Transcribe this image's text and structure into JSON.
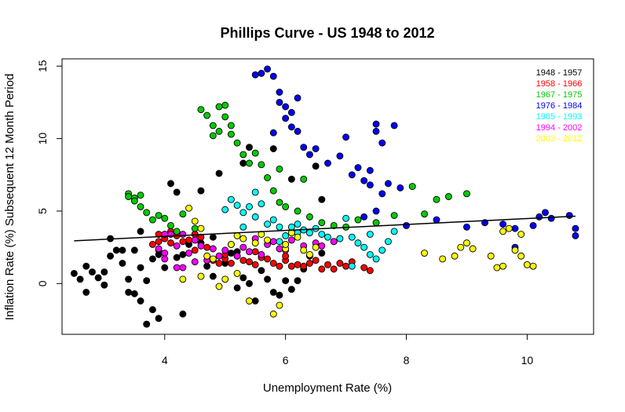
{
  "chart_data": {
    "type": "scatter",
    "title": "Phillips Curve - US 1948 to 2012",
    "xlabel": "Unemployment Rate (%)",
    "ylabel": "Inflation Rate (%) Subsequent 12 Month Period",
    "xlim": [
      2.3,
      11.1
    ],
    "ylim": [
      -3.5,
      15.5
    ],
    "xticks": [
      4,
      6,
      8,
      10
    ],
    "yticks": [
      0,
      5,
      10,
      15
    ],
    "grid": false,
    "legend_position": "top-right",
    "trend_line": {
      "x": [
        2.5,
        10.8
      ],
      "y": [
        2.95,
        4.65
      ]
    },
    "series": [
      {
        "name": "1948 - 1957",
        "color": "#000000",
        "points": [
          [
            2.5,
            0.7
          ],
          [
            2.6,
            0.3
          ],
          [
            2.7,
            1.2
          ],
          [
            2.8,
            0.8
          ],
          [
            2.9,
            0.4
          ],
          [
            3.0,
            0.8
          ],
          [
            3.1,
            1.9
          ],
          [
            3.1,
            3.1
          ],
          [
            3.2,
            2.3
          ],
          [
            3.3,
            1.4
          ],
          [
            3.4,
            0.3
          ],
          [
            3.5,
            2.3
          ],
          [
            3.5,
            -0.7
          ],
          [
            3.6,
            1.1
          ],
          [
            3.7,
            0.2
          ],
          [
            3.8,
            1.7
          ],
          [
            3.9,
            2.3
          ],
          [
            3.9,
            2.0
          ],
          [
            4.0,
            1.1
          ],
          [
            4.0,
            3.4
          ],
          [
            4.1,
            6.9
          ],
          [
            4.2,
            6.3
          ],
          [
            4.3,
            2.0
          ],
          [
            4.4,
            2.7
          ],
          [
            4.5,
            3.4
          ],
          [
            4.6,
            2.8
          ],
          [
            4.7,
            1.2
          ],
          [
            4.8,
            3.2
          ],
          [
            5.0,
            1.4
          ],
          [
            5.1,
            2.1
          ],
          [
            5.2,
            2.2
          ],
          [
            5.3,
            0.4
          ],
          [
            5.4,
            0.0
          ],
          [
            5.5,
            -1.2
          ],
          [
            5.6,
            0.9
          ],
          [
            5.7,
            0.3
          ],
          [
            5.8,
            -0.6
          ],
          [
            5.9,
            -0.8
          ],
          [
            6.0,
            0.2
          ],
          [
            6.1,
            -0.4
          ],
          [
            6.2,
            0.2
          ],
          [
            6.3,
            1.0
          ],
          [
            6.4,
            1.9
          ],
          [
            6.6,
            2.1
          ],
          [
            3.6,
            -1.2
          ],
          [
            3.4,
            -0.6
          ],
          [
            3.7,
            -2.8
          ],
          [
            3.9,
            -2.4
          ],
          [
            3.8,
            -1.8
          ],
          [
            4.3,
            -2.1
          ],
          [
            4.9,
            7.6
          ],
          [
            5.3,
            8.3
          ],
          [
            5.4,
            9.4
          ],
          [
            5.8,
            9.3
          ],
          [
            6.5,
            8.1
          ],
          [
            6.6,
            5.8
          ],
          [
            6.1,
            7.2
          ],
          [
            4.6,
            6.4
          ],
          [
            4.8,
            0.5
          ],
          [
            5.2,
            -0.3
          ],
          [
            3.3,
            2.3
          ],
          [
            3.6,
            3.6
          ],
          [
            4.2,
            1.8
          ],
          [
            2.7,
            -0.6
          ],
          [
            3.0,
            -0.1
          ]
        ]
      },
      {
        "name": "1958 - 1966",
        "color": "#ff0000",
        "points": [
          [
            3.8,
            2.7
          ],
          [
            3.9,
            2.9
          ],
          [
            4.0,
            3.1
          ],
          [
            4.1,
            2.8
          ],
          [
            4.2,
            3.3
          ],
          [
            4.3,
            2.9
          ],
          [
            4.4,
            3.0
          ],
          [
            4.5,
            3.4
          ],
          [
            4.6,
            3.2
          ],
          [
            4.7,
            2.5
          ],
          [
            4.8,
            1.6
          ],
          [
            4.9,
            1.4
          ],
          [
            5.0,
            1.7
          ],
          [
            5.1,
            1.4
          ],
          [
            5.2,
            1.9
          ],
          [
            5.3,
            1.6
          ],
          [
            5.4,
            1.5
          ],
          [
            5.5,
            1.3
          ],
          [
            5.6,
            1.8
          ],
          [
            5.7,
            1.7
          ],
          [
            5.8,
            1.4
          ],
          [
            5.9,
            1.2
          ],
          [
            6.0,
            1.6
          ],
          [
            6.1,
            1.2
          ],
          [
            6.2,
            1.3
          ],
          [
            6.3,
            1.2
          ],
          [
            6.4,
            1.4
          ],
          [
            6.5,
            1.6
          ],
          [
            6.6,
            1.0
          ],
          [
            6.7,
            1.3
          ],
          [
            6.8,
            1.0
          ],
          [
            6.9,
            1.4
          ],
          [
            7.0,
            1.2
          ],
          [
            7.1,
            1.5
          ],
          [
            7.3,
            1.1
          ],
          [
            7.4,
            0.9
          ],
          [
            5.5,
            2.2
          ],
          [
            5.0,
            2.0
          ],
          [
            4.5,
            2.3
          ],
          [
            6.0,
            1.9
          ],
          [
            3.9,
            3.4
          ],
          [
            4.1,
            3.6
          ]
        ]
      },
      {
        "name": "1967 - 1975",
        "color": "#00cc00",
        "points": [
          [
            3.4,
            6.2
          ],
          [
            3.4,
            6.0
          ],
          [
            3.5,
            5.9
          ],
          [
            3.5,
            5.7
          ],
          [
            3.6,
            6.1
          ],
          [
            3.6,
            5.3
          ],
          [
            3.7,
            4.9
          ],
          [
            3.8,
            4.4
          ],
          [
            3.9,
            4.7
          ],
          [
            4.0,
            4.5
          ],
          [
            4.1,
            4.0
          ],
          [
            4.2,
            3.6
          ],
          [
            4.3,
            4.8
          ],
          [
            4.5,
            3.8
          ],
          [
            4.6,
            12.0
          ],
          [
            4.7,
            11.6
          ],
          [
            4.8,
            10.2
          ],
          [
            4.9,
            12.2
          ],
          [
            5.0,
            12.3
          ],
          [
            5.0,
            11.5
          ],
          [
            5.1,
            10.3
          ],
          [
            5.2,
            9.7
          ],
          [
            5.3,
            8.9
          ],
          [
            5.4,
            8.3
          ],
          [
            5.5,
            9.0
          ],
          [
            5.6,
            8.2
          ],
          [
            5.8,
            6.4
          ],
          [
            5.9,
            5.6
          ],
          [
            6.0,
            5.3
          ],
          [
            6.2,
            5.0
          ],
          [
            6.4,
            4.6
          ],
          [
            6.6,
            4.2
          ],
          [
            6.8,
            4.0
          ],
          [
            7.0,
            3.9
          ],
          [
            7.2,
            4.4
          ],
          [
            7.5,
            4.2
          ],
          [
            7.8,
            4.7
          ],
          [
            8.1,
            6.7
          ],
          [
            8.3,
            4.8
          ],
          [
            8.5,
            5.8
          ],
          [
            8.7,
            6.0
          ],
          [
            9.0,
            6.2
          ],
          [
            5.9,
            7.9
          ],
          [
            5.7,
            7.3
          ],
          [
            6.3,
            7.2
          ],
          [
            4.9,
            10.5
          ],
          [
            5.1,
            10.9
          ],
          [
            4.8,
            10.9
          ]
        ]
      },
      {
        "name": "1976 - 1984",
        "color": "#0000ff",
        "points": [
          [
            5.5,
            14.4
          ],
          [
            5.6,
            14.5
          ],
          [
            5.7,
            14.8
          ],
          [
            5.8,
            14.3
          ],
          [
            5.9,
            13.2
          ],
          [
            5.9,
            12.5
          ],
          [
            6.0,
            12.2
          ],
          [
            6.0,
            11.4
          ],
          [
            6.1,
            10.8
          ],
          [
            6.2,
            10.5
          ],
          [
            6.3,
            9.4
          ],
          [
            6.4,
            8.9
          ],
          [
            6.7,
            8.3
          ],
          [
            6.9,
            8.8
          ],
          [
            7.0,
            10.1
          ],
          [
            7.1,
            7.5
          ],
          [
            7.2,
            8.0
          ],
          [
            7.3,
            7.1
          ],
          [
            7.4,
            7.8
          ],
          [
            7.5,
            11.0
          ],
          [
            7.5,
            10.5
          ],
          [
            7.6,
            9.7
          ],
          [
            7.7,
            6.9
          ],
          [
            7.8,
            10.9
          ],
          [
            7.9,
            6.6
          ],
          [
            7.4,
            6.8
          ],
          [
            7.6,
            6.2
          ],
          [
            7.5,
            5.0
          ],
          [
            7.3,
            4.6
          ],
          [
            8.0,
            4.0
          ],
          [
            8.5,
            4.4
          ],
          [
            9.0,
            3.9
          ],
          [
            9.3,
            4.2
          ],
          [
            9.6,
            4.1
          ],
          [
            9.8,
            3.8
          ],
          [
            10.1,
            4.0
          ],
          [
            10.2,
            4.6
          ],
          [
            10.3,
            4.9
          ],
          [
            10.4,
            4.5
          ],
          [
            10.7,
            4.7
          ],
          [
            10.8,
            3.8
          ],
          [
            10.8,
            3.3
          ],
          [
            9.8,
            2.5
          ],
          [
            6.5,
            9.3
          ],
          [
            6.1,
            11.8
          ],
          [
            5.8,
            10.4
          ],
          [
            6.2,
            12.8
          ]
        ]
      },
      {
        "name": "1985 - 1993",
        "color": "#00ffff",
        "points": [
          [
            5.0,
            5.1
          ],
          [
            5.1,
            5.8
          ],
          [
            5.2,
            5.4
          ],
          [
            5.3,
            4.9
          ],
          [
            5.4,
            5.3
          ],
          [
            5.5,
            6.3
          ],
          [
            5.6,
            5.5
          ],
          [
            5.7,
            4.1
          ],
          [
            5.8,
            4.4
          ],
          [
            5.9,
            3.9
          ],
          [
            6.0,
            3.3
          ],
          [
            6.1,
            3.9
          ],
          [
            6.2,
            4.1
          ],
          [
            6.3,
            3.7
          ],
          [
            6.4,
            3.5
          ],
          [
            6.5,
            3.8
          ],
          [
            6.6,
            3.4
          ],
          [
            6.7,
            3.2
          ],
          [
            6.8,
            2.9
          ],
          [
            6.9,
            3.1
          ],
          [
            7.0,
            4.5
          ],
          [
            7.1,
            3.2
          ],
          [
            7.2,
            2.8
          ],
          [
            7.3,
            2.5
          ],
          [
            7.4,
            2.0
          ],
          [
            7.5,
            1.7
          ],
          [
            7.6,
            2.3
          ],
          [
            7.7,
            2.9
          ],
          [
            7.8,
            3.6
          ],
          [
            5.9,
            2.9
          ],
          [
            6.0,
            2.7
          ],
          [
            5.3,
            3.9
          ],
          [
            5.5,
            4.6
          ],
          [
            6.2,
            3.5
          ],
          [
            7.4,
            3.4
          ],
          [
            7.1,
            1.2
          ]
        ]
      },
      {
        "name": "1994 - 2002",
        "color": "#ff00ff",
        "points": [
          [
            3.9,
            2.4
          ],
          [
            4.0,
            2.1
          ],
          [
            4.0,
            1.7
          ],
          [
            4.1,
            3.4
          ],
          [
            4.2,
            2.6
          ],
          [
            4.2,
            1.1
          ],
          [
            4.3,
            3.4
          ],
          [
            4.4,
            2.1
          ],
          [
            4.5,
            1.5
          ],
          [
            4.5,
            3.0
          ],
          [
            4.6,
            2.6
          ],
          [
            4.7,
            1.6
          ],
          [
            4.8,
            2.4
          ],
          [
            4.9,
            1.9
          ],
          [
            5.0,
            2.3
          ],
          [
            5.1,
            2.7
          ],
          [
            5.2,
            1.9
          ],
          [
            5.3,
            2.5
          ],
          [
            5.4,
            2.2
          ],
          [
            5.5,
            3.1
          ],
          [
            5.6,
            2.0
          ],
          [
            5.7,
            2.7
          ],
          [
            5.8,
            2.9
          ],
          [
            5.9,
            2.4
          ],
          [
            6.0,
            2.3
          ],
          [
            6.1,
            3.0
          ],
          [
            6.3,
            2.6
          ],
          [
            6.5,
            2.8
          ],
          [
            6.6,
            2.6
          ],
          [
            6.8,
            2.9
          ],
          [
            4.0,
            3.4
          ],
          [
            4.3,
            1.1
          ]
        ]
      },
      {
        "name": "2003 - 2012",
        "color": "#ffff00",
        "points": [
          [
            4.4,
            5.2
          ],
          [
            4.5,
            4.3
          ],
          [
            4.6,
            3.8
          ],
          [
            4.7,
            1.9
          ],
          [
            4.8,
            1.7
          ],
          [
            4.9,
            -0.2
          ],
          [
            5.0,
            0.3
          ],
          [
            5.1,
            2.7
          ],
          [
            5.2,
            0.7
          ],
          [
            5.3,
            3.1
          ],
          [
            5.4,
            -1.2
          ],
          [
            5.5,
            2.8
          ],
          [
            5.6,
            3.4
          ],
          [
            5.7,
            3.0
          ],
          [
            5.8,
            -2.1
          ],
          [
            5.9,
            -1.5
          ],
          [
            6.0,
            2.4
          ],
          [
            6.1,
            3.5
          ],
          [
            6.2,
            3.2
          ],
          [
            6.3,
            2.3
          ],
          [
            6.4,
            2.0
          ],
          [
            6.5,
            2.5
          ],
          [
            8.3,
            2.1
          ],
          [
            8.6,
            1.7
          ],
          [
            8.9,
            2.5
          ],
          [
            9.0,
            2.8
          ],
          [
            9.1,
            2.4
          ],
          [
            9.4,
            1.9
          ],
          [
            9.5,
            1.1
          ],
          [
            9.6,
            3.6
          ],
          [
            9.7,
            3.8
          ],
          [
            9.8,
            2.3
          ],
          [
            9.9,
            1.9
          ],
          [
            10.0,
            1.3
          ],
          [
            10.1,
            1.2
          ],
          [
            4.3,
            0.3
          ],
          [
            5.2,
            3.3
          ],
          [
            4.6,
            0.5
          ],
          [
            6.0,
            2.7
          ],
          [
            8.8,
            1.9
          ],
          [
            9.9,
            3.4
          ],
          [
            9.6,
            1.2
          ]
        ]
      }
    ]
  }
}
